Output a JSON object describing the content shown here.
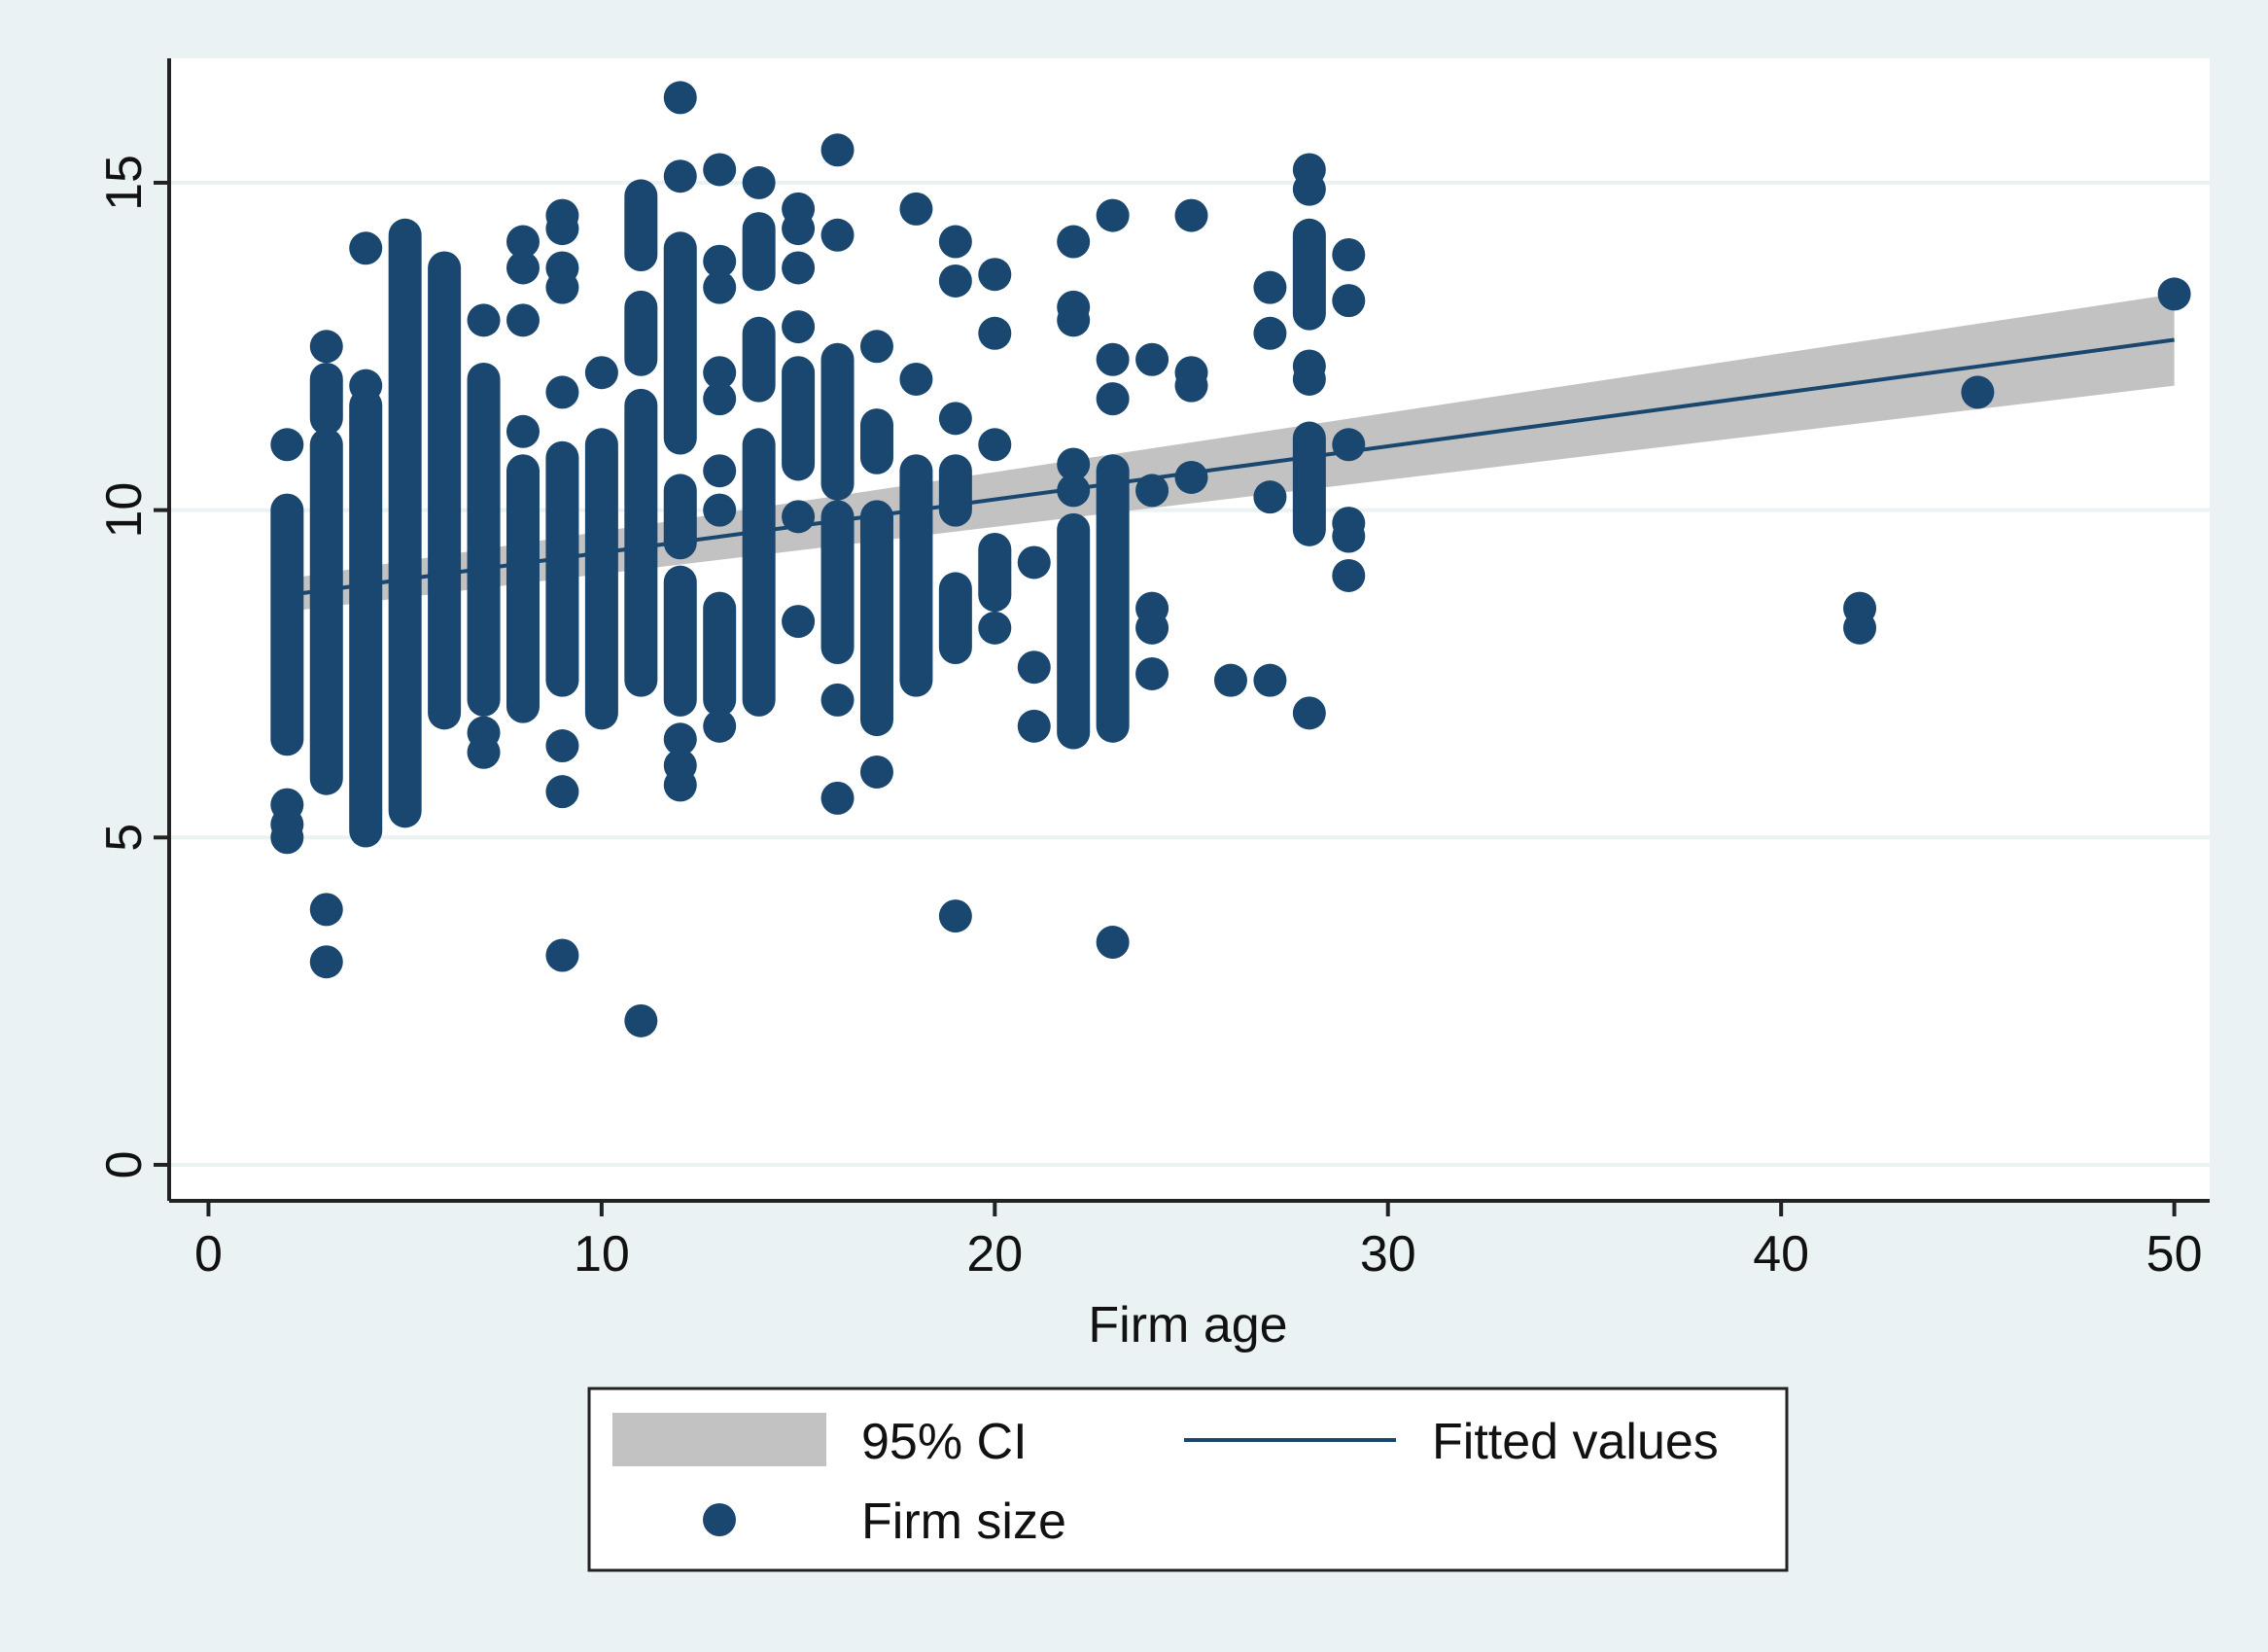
{
  "chart_data": {
    "type": "scatter",
    "title": "",
    "xlabel": "Firm age",
    "ylabel": "",
    "xlim": [
      -1,
      50.9
    ],
    "ylim": [
      -0.55,
      16.9
    ],
    "x_ticks": [
      0,
      10,
      20,
      30,
      40,
      50
    ],
    "y_ticks": [
      0,
      5,
      10,
      15
    ],
    "x_tick_labels": [
      "0",
      "10",
      "20",
      "30",
      "40",
      "50"
    ],
    "y_tick_labels": [
      "0",
      "5",
      "10",
      "15"
    ],
    "grid": "horizontal",
    "colors": {
      "background": "#eaf2f3",
      "plot_background": "#ffffff",
      "points": "#1a476f",
      "fitted_line": "#1a476f",
      "ci_band": "#c2c2c2",
      "grid": "#eaf2f3",
      "axis": "#222222"
    },
    "legend": {
      "placement": "bottom",
      "entries": [
        {
          "label": "95% CI",
          "symbol": "band"
        },
        {
          "label": "Fitted values",
          "symbol": "line"
        },
        {
          "label": "Firm size",
          "symbol": "dot"
        }
      ]
    },
    "fitted_values": {
      "name": "Fitted values",
      "x": [
        2,
        50
      ],
      "y": [
        8.7,
        12.6
      ],
      "ci_lower": [
        8.45,
        11.9
      ],
      "ci_upper": [
        8.95,
        13.3
      ]
    },
    "series": [
      {
        "name": "Firm size",
        "columns": [
          {
            "x": 2,
            "segments": [
              [
                6.5,
                10.0
              ]
            ],
            "points": [
              11.0,
              5.5,
              5.2,
              5.0
            ]
          },
          {
            "x": 3,
            "segments": [
              [
                5.9,
                11.0
              ],
              [
                11.4,
                12.0
              ]
            ],
            "points": [
              12.5,
              3.9,
              3.1
            ]
          },
          {
            "x": 4,
            "segments": [
              [
                5.1,
                11.6
              ]
            ],
            "points": [
              11.9,
              14.0
            ]
          },
          {
            "x": 5,
            "segments": [
              [
                5.4,
                14.2
              ]
            ],
            "points": []
          },
          {
            "x": 6,
            "segments": [
              [
                6.9,
                13.7
              ]
            ],
            "points": []
          },
          {
            "x": 7,
            "segments": [
              [
                7.1,
                12.0
              ]
            ],
            "points": [
              12.9,
              6.6,
              6.3
            ]
          },
          {
            "x": 8,
            "segments": [
              [
                7.0,
                10.6
              ]
            ],
            "points": [
              11.2,
              12.9,
              13.7,
              14.1
            ]
          },
          {
            "x": 9,
            "segments": [
              [
                7.4,
                10.8
              ]
            ],
            "points": [
              11.8,
              13.4,
              13.7,
              14.3,
              14.5,
              6.4,
              5.7,
              3.2
            ]
          },
          {
            "x": 10,
            "segments": [
              [
                6.9,
                11.0
              ]
            ],
            "points": [
              12.1
            ]
          },
          {
            "x": 11,
            "segments": [
              [
                7.4,
                11.6
              ],
              [
                12.3,
                13.1
              ],
              [
                13.9,
                14.8
              ]
            ],
            "points": [
              2.2
            ]
          },
          {
            "x": 12,
            "segments": [
              [
                7.1,
                8.9
              ],
              [
                9.5,
                10.3
              ],
              [
                11.1,
                14.0
              ]
            ],
            "points": [
              15.1,
              16.3,
              6.5,
              6.1,
              5.8
            ]
          },
          {
            "x": 13,
            "segments": [
              [
                7.1,
                8.5
              ]
            ],
            "points": [
              6.7,
              10.0,
              10.6,
              11.7,
              12.1,
              13.4,
              13.8,
              15.2
            ]
          },
          {
            "x": 14,
            "segments": [
              [
                7.1,
                11.0
              ],
              [
                11.9,
                12.7
              ],
              [
                13.6,
                14.3
              ]
            ],
            "points": [
              15.0
            ]
          },
          {
            "x": 15,
            "segments": [
              [
                10.7,
                12.1
              ]
            ],
            "points": [
              8.3,
              9.9,
              12.8,
              13.7,
              14.3,
              14.6
            ]
          },
          {
            "x": 16,
            "segments": [
              [
                7.9,
                9.9
              ],
              [
                10.4,
                12.3
              ]
            ],
            "points": [
              7.1,
              5.6,
              14.2,
              15.5
            ]
          },
          {
            "x": 17,
            "segments": [
              [
                6.8,
                9.9
              ],
              [
                10.8,
                11.3
              ]
            ],
            "points": [
              6.0,
              12.5
            ]
          },
          {
            "x": 18,
            "segments": [
              [
                7.4,
                10.6
              ]
            ],
            "points": [
              12.0,
              14.6
            ]
          },
          {
            "x": 19,
            "segments": [
              [
                7.9,
                8.8
              ],
              [
                10.0,
                10.6
              ]
            ],
            "points": [
              11.4,
              13.5,
              14.1,
              3.8
            ]
          },
          {
            "x": 20,
            "segments": [
              [
                8.7,
                9.4
              ]
            ],
            "points": [
              8.2,
              11.0,
              12.7,
              13.6
            ]
          },
          {
            "x": 21,
            "segments": [],
            "points": [
              9.2,
              7.6,
              6.7
            ]
          },
          {
            "x": 22,
            "segments": [
              [
                6.6,
                9.7
              ]
            ],
            "points": [
              10.3,
              10.7,
              12.9,
              13.1,
              14.1
            ]
          },
          {
            "x": 23,
            "segments": [
              [
                6.7,
                10.6
              ]
            ],
            "points": [
              11.7,
              12.3,
              14.5,
              3.4
            ]
          },
          {
            "x": 24,
            "segments": [],
            "points": [
              10.3,
              12.3,
              8.5,
              8.2,
              7.5
            ]
          },
          {
            "x": 25,
            "segments": [],
            "points": [
              10.5,
              11.9,
              12.1,
              14.5
            ]
          },
          {
            "x": 26,
            "segments": [],
            "points": [
              7.4
            ]
          },
          {
            "x": 27,
            "segments": [],
            "points": [
              10.2,
              12.7,
              13.4,
              7.4
            ]
          },
          {
            "x": 28,
            "segments": [
              [
                9.7,
                11.1
              ],
              [
                13.0,
                14.2
              ]
            ],
            "points": [
              12.0,
              12.2,
              14.9,
              15.2,
              6.9
            ]
          },
          {
            "x": 29,
            "segments": [],
            "points": [
              11.0,
              9.6,
              9.8,
              9.0,
              13.2,
              13.9
            ]
          },
          {
            "x": 42,
            "segments": [],
            "points": [
              8.5,
              8.2
            ]
          },
          {
            "x": 45,
            "segments": [],
            "points": [
              11.8
            ]
          },
          {
            "x": 50,
            "segments": [],
            "points": [
              13.3
            ]
          }
        ]
      }
    ]
  }
}
